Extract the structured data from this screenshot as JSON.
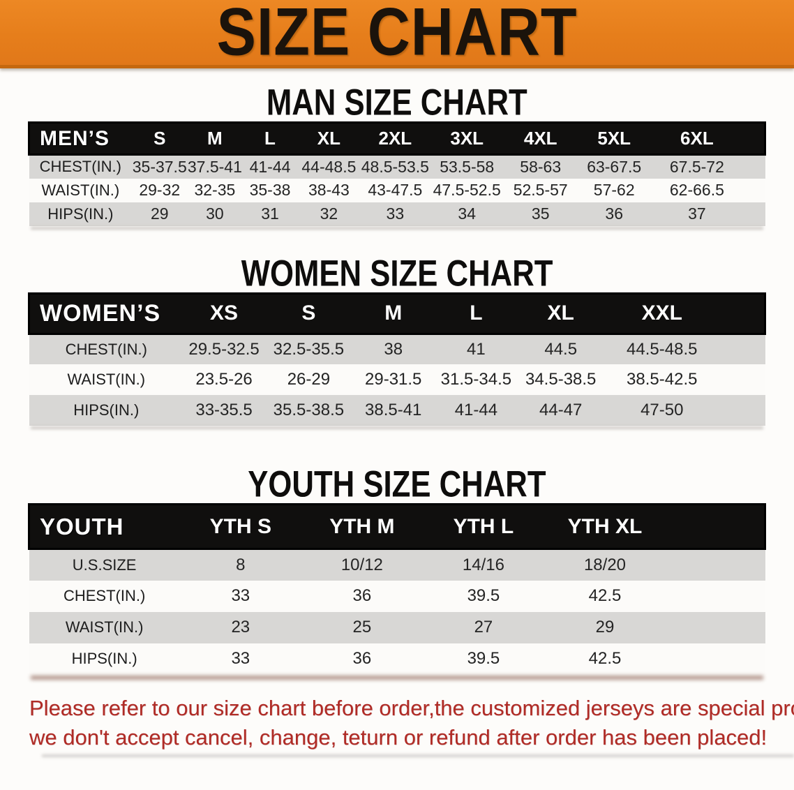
{
  "banner": {
    "title": "SIZE CHART",
    "bg_color": "#e67e1b",
    "text_color": "#1b130b"
  },
  "sections": [
    {
      "id": "men",
      "heading": "MAN SIZE CHART",
      "table": {
        "header_label": "MEN’S",
        "columns": [
          "S",
          "M",
          "L",
          "XL",
          "2XL",
          "3XL",
          "4XL",
          "5XL",
          "6XL"
        ],
        "rows": [
          {
            "label": "CHEST(IN.)",
            "values": [
              "35-37.5",
              "37.5-41",
              "41-44",
              "44-48.5",
              "48.5-53.5",
              "53.5-58",
              "58-63",
              "63-67.5",
              "67.5-72"
            ]
          },
          {
            "label": "WAIST(IN.)",
            "values": [
              "29-32",
              "32-35",
              "35-38",
              "38-43",
              "43-47.5",
              "47.5-52.5",
              "52.5-57",
              "57-62",
              "62-66.5"
            ]
          },
          {
            "label": "HIPS(IN.)",
            "values": [
              "29",
              "30",
              "31",
              "32",
              "33",
              "34",
              "35",
              "36",
              "37"
            ]
          }
        ]
      }
    },
    {
      "id": "women",
      "heading": "WOMEN SIZE CHART",
      "table": {
        "header_label": "WOMEN’S",
        "columns": [
          "XS",
          "S",
          "M",
          "L",
          "XL",
          "XXL"
        ],
        "rows": [
          {
            "label": "CHEST(IN.)",
            "values": [
              "29.5-32.5",
              "32.5-35.5",
              "38",
              "41",
              "44.5",
              "44.5-48.5"
            ]
          },
          {
            "label": "WAIST(IN.)",
            "values": [
              "23.5-26",
              "26-29",
              "29-31.5",
              "31.5-34.5",
              "34.5-38.5",
              "38.5-42.5"
            ]
          },
          {
            "label": "HIPS(IN.)",
            "values": [
              "33-35.5",
              "35.5-38.5",
              "38.5-41",
              "41-44",
              "44-47",
              "47-50"
            ]
          }
        ]
      }
    },
    {
      "id": "youth",
      "heading": "YOUTH SIZE CHART",
      "table": {
        "header_label": "YOUTH",
        "columns": [
          "YTH S",
          "YTH M",
          "YTH L",
          "YTH XL"
        ],
        "rows": [
          {
            "label": "U.S.SIZE",
            "values": [
              "8",
              "10/12",
              "14/16",
              "18/20"
            ]
          },
          {
            "label": "CHEST(IN.)",
            "values": [
              "33",
              "36",
              "39.5",
              "42.5"
            ]
          },
          {
            "label": "WAIST(IN.)",
            "values": [
              "23",
              "25",
              "27",
              "29"
            ]
          },
          {
            "label": "HIPS(IN.)",
            "values": [
              "33",
              "36",
              "39.5",
              "42.5"
            ]
          }
        ]
      }
    }
  ],
  "disclaimer": {
    "color": "#b02b26",
    "lines": [
      "Please refer to our size chart before order,the customized jerseys are special products,",
      "we don't accept cancel, change, teturn or refund after order has been placed!"
    ]
  }
}
